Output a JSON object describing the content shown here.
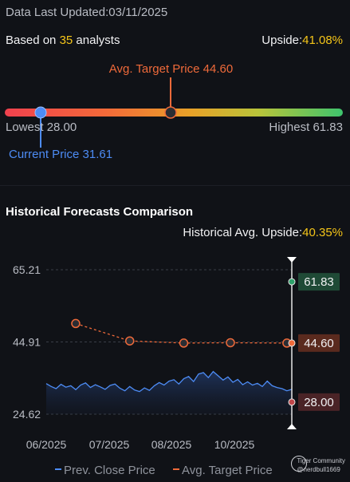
{
  "header": {
    "updated_label": "Data Last Updated:",
    "updated_date": "03/11/2025",
    "based_prefix": "Based on ",
    "analyst_count": "35",
    "based_suffix": " analysts",
    "upside_label": "Upside:",
    "upside_value": "41.08%"
  },
  "range": {
    "avg_target_label": "Avg. Target Price 44.60",
    "lowest_label": "Lowest 28.00",
    "highest_label": "Highest 61.83",
    "current_label": "Current Price 31.61",
    "lowest": 28.0,
    "highest": 61.83,
    "current": 31.61,
    "avg_target": 44.6
  },
  "historical": {
    "title": "Historical Forecasts Comparison",
    "upside_label": "Historical Avg. Upside:",
    "upside_value": "40.35%"
  },
  "legend": {
    "prev_close": "Prev. Close Price",
    "avg_target": "Avg. Target Price"
  },
  "watermark": {
    "brand": "Tiger Community",
    "user": "@nerdbull1669"
  },
  "colors": {
    "accent_yellow": "#f5c518",
    "avg_orange": "#ef6a3a",
    "current_blue": "#4d8cf5",
    "high_green": "#2ea26a",
    "low_red": "#c0474a"
  },
  "chart_data": {
    "type": "line",
    "x_tick_labels": [
      "06/2025",
      "07/2025",
      "08/2025",
      "10/2025"
    ],
    "y_tick_labels": [
      "65.21",
      "44.91",
      "24.62"
    ],
    "ylim": [
      24.62,
      65.21
    ],
    "xlim": [
      0,
      100
    ],
    "series": [
      {
        "name": "Prev. Close Price",
        "x": [
          0,
          2,
          4,
          6,
          8,
          10,
          12,
          14,
          16,
          18,
          20,
          22,
          24,
          26,
          28,
          30,
          32,
          34,
          36,
          38,
          40,
          42,
          44,
          46,
          48,
          50,
          52,
          54,
          56,
          58,
          60,
          62,
          64,
          66,
          68,
          70,
          72,
          74,
          76,
          78,
          80,
          82,
          84,
          86,
          88,
          90,
          92,
          94,
          96,
          98,
          100
        ],
        "values": [
          33.2,
          32.4,
          31.8,
          33.0,
          32.2,
          32.6,
          31.5,
          32.8,
          33.4,
          32.1,
          32.9,
          32.3,
          31.6,
          32.7,
          33.1,
          31.9,
          31.2,
          32.4,
          31.4,
          31.0,
          32.0,
          31.3,
          32.6,
          33.5,
          32.8,
          33.9,
          34.3,
          33.1,
          34.6,
          35.2,
          33.8,
          35.9,
          36.3,
          34.9,
          36.6,
          35.4,
          34.2,
          35.1,
          33.6,
          34.4,
          32.9,
          33.7,
          32.8,
          33.3,
          32.4,
          33.9,
          32.6,
          32.1,
          31.8,
          31.2,
          31.6
        ]
      },
      {
        "name": "Avg. Target Price",
        "x": [
          12,
          34,
          56,
          75,
          98
        ],
        "values": [
          50.1,
          45.2,
          44.6,
          44.7,
          44.6
        ]
      }
    ],
    "end_markers": {
      "high": "61.83",
      "avg": "44.60",
      "low": "28.00"
    }
  }
}
